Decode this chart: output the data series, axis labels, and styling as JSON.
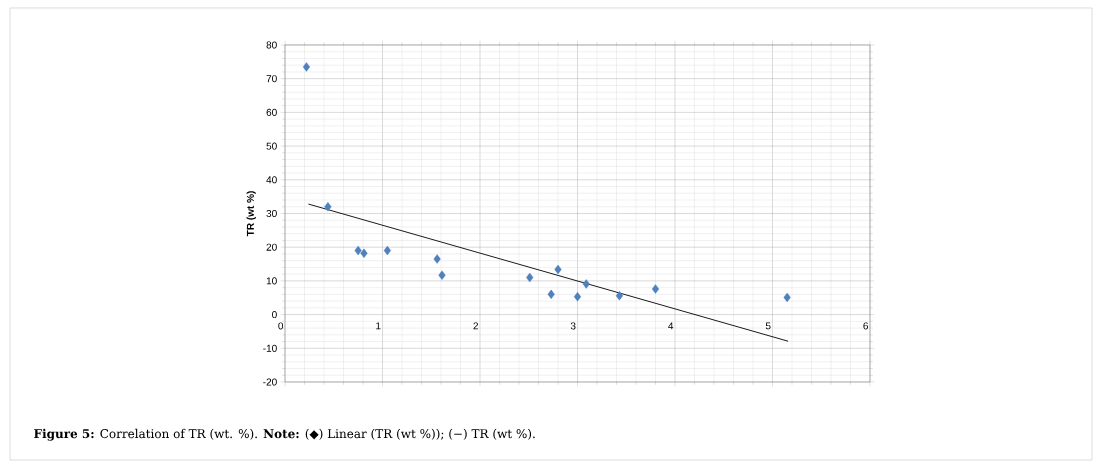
{
  "chart_data": {
    "type": "scatter",
    "ylabel": "TR (wt %)",
    "annotations": [
      "**Figure 5:** Correlation of TR (wt. %). **Note:** (◆) Linear (TR (wt %)); (−) TR (wt %)."
    ],
    "xlim": [
      0,
      6
    ],
    "ylim": [
      -20,
      80
    ],
    "xticks": [
      0,
      1,
      2,
      3,
      4,
      5,
      6
    ],
    "yticks": [
      -20,
      -10,
      0,
      10,
      20,
      30,
      40,
      50,
      60,
      70,
      80
    ],
    "grid": true,
    "series": [
      {
        "color": "#4f81bd",
        "marker": "diamond",
        "x": [
          0.22,
          0.44,
          0.75,
          0.81,
          1.05,
          1.56,
          1.61,
          2.51,
          2.8,
          2.73,
          3.0,
          3.09,
          3.43,
          3.8,
          5.15
        ],
        "values": [
          73.5,
          32,
          19,
          18.2,
          19,
          16.5,
          11.7,
          11,
          13.4,
          6,
          5.3,
          9.1,
          5.6,
          7.6,
          5.1
        ]
      },
      {
        "type": "line",
        "color": "#000000",
        "marker": "none",
        "line_style": "solid",
        "x": [
          0.24,
          5.16
        ],
        "values": [
          32.8,
          -7.9
        ]
      }
    ]
  }
}
